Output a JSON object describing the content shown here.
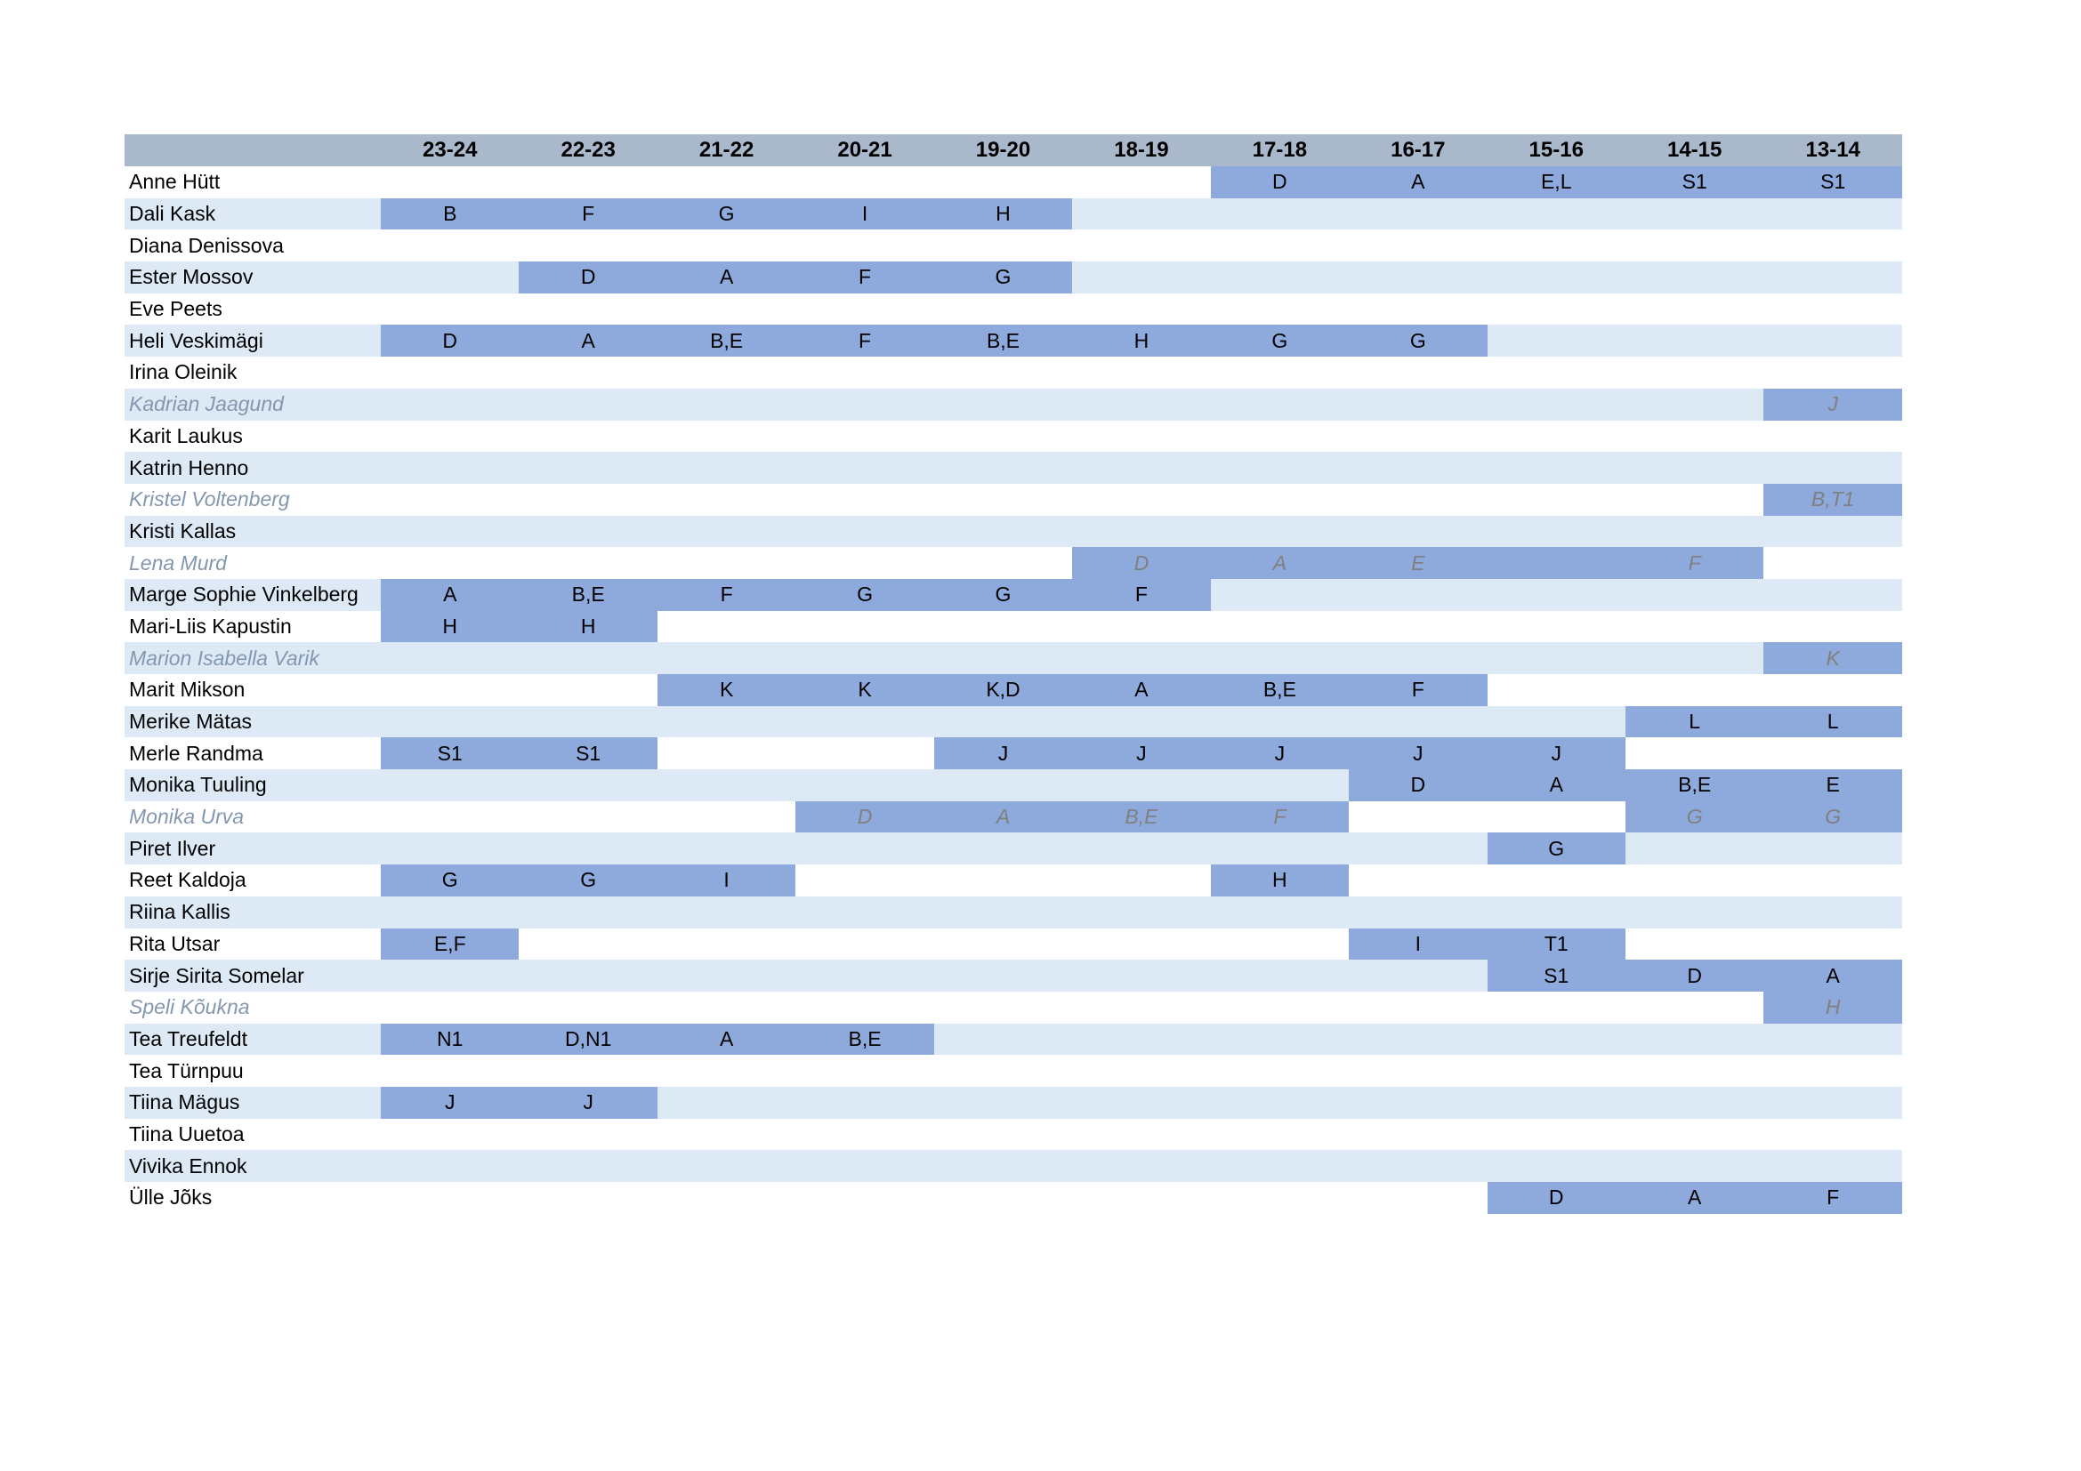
{
  "table": {
    "corner": "",
    "seasons": [
      "23-24",
      "22-23",
      "21-22",
      "20-21",
      "19-20",
      "18-19",
      "17-18",
      "16-17",
      "15-16",
      "14-15",
      "13-14"
    ],
    "rows": [
      {
        "name": "Anne Hütt",
        "inactive": false,
        "cells": [
          null,
          null,
          null,
          null,
          null,
          null,
          "D",
          "A",
          "E,L",
          "S1",
          "S1"
        ]
      },
      {
        "name": "Dali Kask",
        "inactive": false,
        "cells": [
          "B",
          "F",
          "G",
          "I",
          "H",
          null,
          null,
          null,
          null,
          null,
          null
        ]
      },
      {
        "name": "Diana Denissova",
        "inactive": false,
        "cells": [
          null,
          null,
          null,
          null,
          null,
          null,
          null,
          null,
          null,
          null,
          null
        ]
      },
      {
        "name": "Ester Mossov",
        "inactive": false,
        "cells": [
          null,
          "D",
          "A",
          "F",
          "G",
          null,
          null,
          null,
          null,
          null,
          null
        ]
      },
      {
        "name": "Eve Peets",
        "inactive": false,
        "cells": [
          null,
          null,
          null,
          null,
          null,
          null,
          null,
          null,
          null,
          null,
          null
        ]
      },
      {
        "name": "Heli Veskimägi",
        "inactive": false,
        "cells": [
          "D",
          "A",
          "B,E",
          "F",
          "B,E",
          "H",
          "G",
          "G",
          null,
          null,
          null
        ]
      },
      {
        "name": "Irina Oleinik",
        "inactive": false,
        "cells": [
          null,
          null,
          null,
          null,
          null,
          null,
          null,
          null,
          null,
          null,
          null
        ]
      },
      {
        "name": "Kadrian Jaagund",
        "inactive": true,
        "cells": [
          null,
          null,
          null,
          null,
          null,
          null,
          null,
          null,
          null,
          null,
          "J"
        ]
      },
      {
        "name": "Karit Laukus",
        "inactive": false,
        "cells": [
          null,
          null,
          null,
          null,
          null,
          null,
          null,
          null,
          null,
          null,
          null
        ]
      },
      {
        "name": "Katrin Henno",
        "inactive": false,
        "cells": [
          null,
          null,
          null,
          null,
          null,
          null,
          null,
          null,
          null,
          null,
          null
        ]
      },
      {
        "name": "Kristel Voltenberg",
        "inactive": true,
        "cells": [
          null,
          null,
          null,
          null,
          null,
          null,
          null,
          null,
          null,
          null,
          "B,T1"
        ]
      },
      {
        "name": "Kristi Kallas",
        "inactive": false,
        "cells": [
          null,
          null,
          null,
          null,
          null,
          null,
          null,
          null,
          null,
          null,
          null
        ]
      },
      {
        "name": "Lena Murd",
        "inactive": true,
        "cells": [
          null,
          null,
          null,
          null,
          null,
          "D",
          "A",
          "E",
          "",
          "F",
          null
        ]
      },
      {
        "name": "Marge Sophie Vinkelberg",
        "inactive": false,
        "cells": [
          "A",
          "B,E",
          "F",
          "G",
          "G",
          "F",
          null,
          null,
          null,
          null,
          null
        ]
      },
      {
        "name": "Mari-Liis Kapustin",
        "inactive": false,
        "cells": [
          "H",
          "H",
          null,
          null,
          null,
          null,
          null,
          null,
          null,
          null,
          null
        ]
      },
      {
        "name": "Marion Isabella Varik",
        "inactive": true,
        "cells": [
          null,
          null,
          null,
          null,
          null,
          null,
          null,
          null,
          null,
          null,
          "K"
        ]
      },
      {
        "name": "Marit Mikson",
        "inactive": false,
        "cells": [
          null,
          null,
          "K",
          "K",
          "K,D",
          "A",
          "B,E",
          "F",
          null,
          null,
          null
        ]
      },
      {
        "name": "Merike Mätas",
        "inactive": false,
        "cells": [
          null,
          null,
          null,
          null,
          null,
          null,
          null,
          null,
          null,
          "L",
          "L"
        ]
      },
      {
        "name": "Merle Randma",
        "inactive": false,
        "cells": [
          "S1",
          "S1",
          null,
          null,
          "J",
          "J",
          "J",
          "J",
          "J",
          null,
          null
        ]
      },
      {
        "name": "Monika Tuuling",
        "inactive": false,
        "cells": [
          null,
          null,
          null,
          null,
          null,
          null,
          null,
          "D",
          "A",
          "B,E",
          "E"
        ]
      },
      {
        "name": "Monika Urva",
        "inactive": true,
        "cells": [
          null,
          null,
          null,
          "D",
          "A",
          "B,E",
          "F",
          null,
          null,
          "G",
          "G"
        ]
      },
      {
        "name": "Piret Ilver",
        "inactive": false,
        "cells": [
          null,
          null,
          null,
          null,
          null,
          null,
          null,
          null,
          "G",
          null,
          null
        ]
      },
      {
        "name": "Reet Kaldoja",
        "inactive": false,
        "cells": [
          "G",
          "G",
          "I",
          null,
          null,
          null,
          "H",
          null,
          null,
          null,
          null
        ]
      },
      {
        "name": "Riina Kallis",
        "inactive": false,
        "cells": [
          null,
          null,
          null,
          null,
          null,
          null,
          null,
          null,
          null,
          null,
          null
        ]
      },
      {
        "name": "Rita Utsar",
        "inactive": false,
        "cells": [
          "E,F",
          null,
          null,
          null,
          null,
          null,
          null,
          "I",
          "T1",
          null,
          null
        ]
      },
      {
        "name": "Sirje Sirita Somelar",
        "inactive": false,
        "cells": [
          null,
          null,
          null,
          null,
          null,
          null,
          null,
          null,
          "S1",
          "D",
          "A"
        ]
      },
      {
        "name": "Speli Kõukna",
        "inactive": true,
        "cells": [
          null,
          null,
          null,
          null,
          null,
          null,
          null,
          null,
          null,
          null,
          "H"
        ]
      },
      {
        "name": "Tea Treufeldt",
        "inactive": false,
        "cells": [
          "N1",
          "D,N1",
          "A",
          "B,E",
          null,
          null,
          null,
          null,
          null,
          null,
          null
        ]
      },
      {
        "name": "Tea Türnpuu",
        "inactive": false,
        "cells": [
          null,
          null,
          null,
          null,
          null,
          null,
          null,
          null,
          null,
          null,
          null
        ]
      },
      {
        "name": "Tiina Mägus",
        "inactive": false,
        "cells": [
          "J",
          "J",
          null,
          null,
          null,
          null,
          null,
          null,
          null,
          null,
          null
        ]
      },
      {
        "name": "Tiina Uuetoa",
        "inactive": false,
        "cells": [
          null,
          null,
          null,
          null,
          null,
          null,
          null,
          null,
          null,
          null,
          null
        ]
      },
      {
        "name": "Vivika Ennok",
        "inactive": false,
        "cells": [
          null,
          null,
          null,
          null,
          null,
          null,
          null,
          null,
          null,
          null,
          null
        ]
      },
      {
        "name": "Ülle Jõks",
        "inactive": false,
        "cells": [
          null,
          null,
          null,
          null,
          null,
          null,
          null,
          null,
          "D",
          "A",
          "F"
        ]
      }
    ]
  },
  "colors": {
    "header": "#aab8cc",
    "filled": "#8ea9db",
    "band": "#ddeaf6",
    "inactive_text": "#808080"
  }
}
